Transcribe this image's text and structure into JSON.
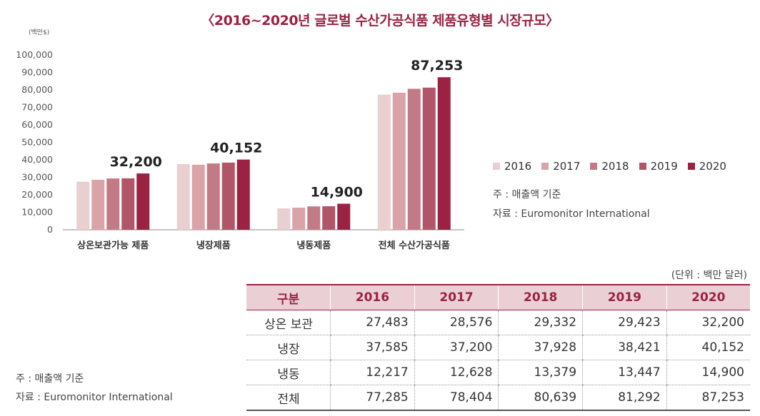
{
  "chart_data": {
    "type": "bar",
    "title": "〈2016~2020년 글로벌 수산가공식품 제품유형별 시장규모〉",
    "ylabel": "(백만$)",
    "ylim": [
      0,
      100000
    ],
    "yticks": [
      "0",
      "10,000",
      "20,000",
      "30,000",
      "40,000",
      "50,000",
      "60,000",
      "70,000",
      "80,000",
      "90,000",
      "100,000"
    ],
    "categories": [
      "상온보관가능 제품",
      "냉장제품",
      "냉동제품",
      "전체 수산가공식품"
    ],
    "series": [
      {
        "name": "2016",
        "color": "#e9cfcf",
        "values": [
          27483,
          37585,
          12217,
          77285
        ]
      },
      {
        "name": "2017",
        "color": "#d9a3a8",
        "values": [
          28576,
          37200,
          12628,
          78404
        ]
      },
      {
        "name": "2018",
        "color": "#c27b86",
        "values": [
          29332,
          37928,
          13379,
          80639
        ]
      },
      {
        "name": "2019",
        "color": "#b05668",
        "values": [
          29423,
          38421,
          13447,
          81292
        ]
      },
      {
        "name": "2020",
        "color": "#9b2242",
        "values": [
          32200,
          40152,
          14900,
          87253
        ]
      }
    ],
    "value_labels": [
      "32,200",
      "40,152",
      "14,900",
      "87,253"
    ]
  },
  "chart_notes": {
    "basis": "주 : 매출액 기준",
    "source": "자료 : Euromonitor International"
  },
  "table": {
    "unit": "(단위 : 백만 달러)",
    "headers": [
      "구분",
      "2016",
      "2017",
      "2018",
      "2019",
      "2020"
    ],
    "rows": [
      [
        "상온 보관",
        "27,483",
        "28,576",
        "29,332",
        "29,423",
        "32,200"
      ],
      [
        "냉장",
        "37,585",
        "37,200",
        "37,928",
        "38,421",
        "40,152"
      ],
      [
        "냉동",
        "12,217",
        "12,628",
        "13,379",
        "13,447",
        "14,900"
      ],
      [
        "전체",
        "77,285",
        "78,404",
        "80,639",
        "81,292",
        "87,253"
      ]
    ]
  },
  "bottom_notes": {
    "basis": "주 : 매출액 기준",
    "source": "자료 : Euromonitor International"
  }
}
